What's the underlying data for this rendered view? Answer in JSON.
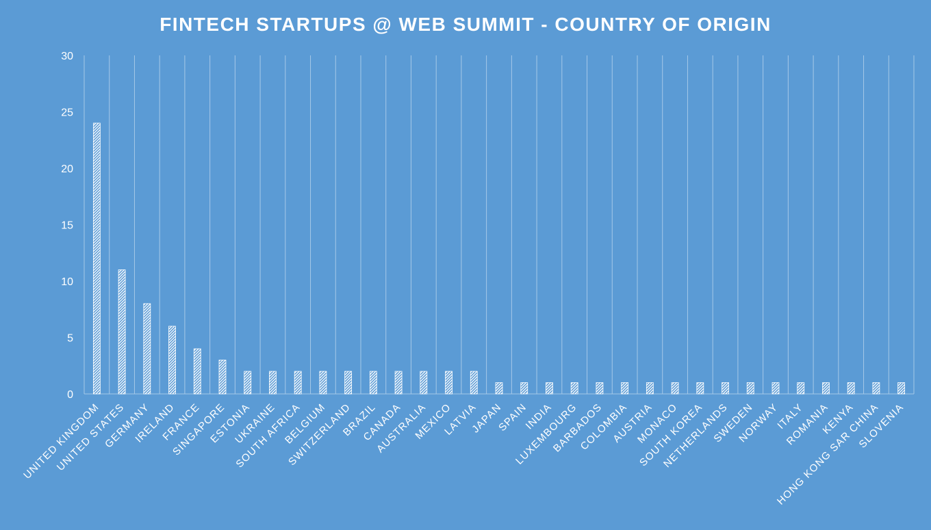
{
  "chart_data": {
    "type": "bar",
    "title": "FINTECH STARTUPS @ WEB SUMMIT - COUNTRY OF ORIGIN",
    "xlabel": "",
    "ylabel": "",
    "ylim": [
      0,
      30
    ],
    "yticks": [
      0,
      5,
      10,
      15,
      20,
      25,
      30
    ],
    "grid": "vertical",
    "legend": "none",
    "categories": [
      "UNITED KINGDOM",
      "UNITED STATES",
      "GERMANY",
      "IRELAND",
      "FRANCE",
      "SINGAPORE",
      "ESTONIA",
      "UKRAINE",
      "SOUTH AFRICA",
      "BELGIUM",
      "SWITZERLAND",
      "BRAZIL",
      "CANADA",
      "AUSTRALIA",
      "MEXICO",
      "LATVIA",
      "JAPAN",
      "SPAIN",
      "INDIA",
      "LUXEMBOURG",
      "BARBADOS",
      "COLOMBIA",
      "AUSTRIA",
      "MONACO",
      "SOUTH KOREA",
      "NETHERLANDS",
      "SWEDEN",
      "NORWAY",
      "ITALY",
      "ROMANIA",
      "KENYA",
      "HONG KONG SAR CHINA",
      "SLOVENIA"
    ],
    "values": [
      24,
      11,
      8,
      6,
      4,
      3,
      2,
      2,
      2,
      2,
      2,
      2,
      2,
      2,
      2,
      2,
      1,
      1,
      1,
      1,
      1,
      1,
      1,
      1,
      1,
      1,
      1,
      1,
      1,
      1,
      1,
      1,
      1
    ],
    "colors": {
      "background": "#5b9bd5",
      "bar_pattern": "#ffffff",
      "text": "#ffffff",
      "grid": "#a6c8e8"
    },
    "bar_fill": "diagonal-hatch"
  }
}
